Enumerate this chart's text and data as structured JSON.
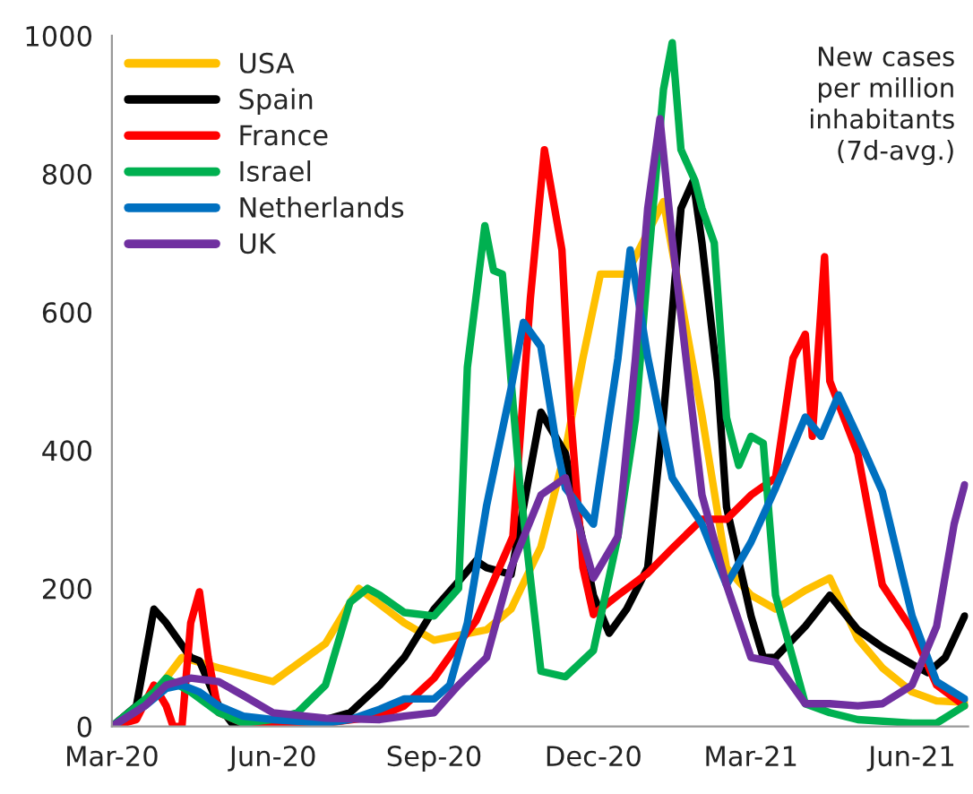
{
  "chart_data": {
    "type": "line",
    "annotations": [
      "New cases\nper million\ninhabitants\n(7d-avg.)"
    ],
    "xlim": [
      "2020-03-01",
      "2021-07-03"
    ],
    "xticks": [
      {
        "value": "2020-03-01",
        "label": "Mar-20"
      },
      {
        "value": "2020-06-01",
        "label": "Jun-20"
      },
      {
        "value": "2020-09-01",
        "label": "Sep-20"
      },
      {
        "value": "2020-12-01",
        "label": "Dec-20"
      },
      {
        "value": "2021-03-01",
        "label": "Mar-21"
      },
      {
        "value": "2021-06-01",
        "label": "Jun-21"
      }
    ],
    "ylim": [
      0,
      1000
    ],
    "yticks": [
      0,
      200,
      400,
      600,
      800,
      1000
    ],
    "grid": false,
    "legend": "top left",
    "series": [
      {
        "name": "USA",
        "color": "#ffc000",
        "x": [
          "2020-03-01",
          "2020-03-20",
          "2020-04-10",
          "2020-05-01",
          "2020-06-01",
          "2020-07-01",
          "2020-07-20",
          "2020-08-15",
          "2020-09-01",
          "2020-10-01",
          "2020-10-15",
          "2020-11-01",
          "2020-11-15",
          "2020-11-25",
          "2020-12-05",
          "2020-12-20",
          "2021-01-10",
          "2021-02-01",
          "2021-02-15",
          "2021-03-01",
          "2021-03-15",
          "2021-04-01",
          "2021-04-15",
          "2021-05-01",
          "2021-05-15",
          "2021-06-01",
          "2021-06-15",
          "2021-07-01"
        ],
        "values": [
          0,
          30,
          100,
          85,
          65,
          120,
          200,
          150,
          125,
          140,
          170,
          260,
          400,
          533,
          655,
          655,
          760,
          450,
          230,
          190,
          170,
          197,
          215,
          127,
          85,
          50,
          37,
          35
        ]
      },
      {
        "name": "Spain",
        "color": "#000000",
        "x": [
          "2020-03-01",
          "2020-03-15",
          "2020-03-25",
          "2020-04-01",
          "2020-04-15",
          "2020-04-20",
          "2020-05-01",
          "2020-05-10",
          "2020-06-01",
          "2020-07-01",
          "2020-07-15",
          "2020-08-01",
          "2020-08-15",
          "2020-09-01",
          "2020-09-15",
          "2020-09-25",
          "2020-10-01",
          "2020-10-15",
          "2020-11-01",
          "2020-11-15",
          "2020-12-01",
          "2020-12-10",
          "2020-12-20",
          "2021-01-01",
          "2021-01-10",
          "2021-01-20",
          "2021-01-27",
          "2021-02-01",
          "2021-02-10",
          "2021-02-15",
          "2021-03-01",
          "2021-03-08",
          "2021-03-15",
          "2021-04-01",
          "2021-04-15",
          "2021-05-01",
          "2021-05-15",
          "2021-06-01",
          "2021-06-10",
          "2021-06-20",
          "2021-07-01"
        ],
        "values": [
          0,
          30,
          170,
          150,
          100,
          95,
          30,
          0,
          10,
          10,
          20,
          60,
          100,
          170,
          210,
          240,
          230,
          220,
          455,
          395,
          190,
          135,
          170,
          230,
          450,
          750,
          790,
          700,
          500,
          318,
          160,
          100,
          100,
          145,
          190,
          140,
          115,
          90,
          78,
          100,
          160
        ]
      },
      {
        "name": "France",
        "color": "#ff0000",
        "x": [
          "2020-03-01",
          "2020-03-15",
          "2020-03-25",
          "2020-04-01",
          "2020-04-05",
          "2020-04-10",
          "2020-04-15",
          "2020-04-20",
          "2020-04-25",
          "2020-05-01",
          "2020-05-15",
          "2020-06-01",
          "2020-07-01",
          "2020-08-01",
          "2020-08-15",
          "2020-09-01",
          "2020-09-15",
          "2020-09-25",
          "2020-10-16",
          "2020-10-26",
          "2020-11-03",
          "2020-11-13",
          "2020-11-18",
          "2020-11-25",
          "2020-12-01",
          "2020-12-15",
          "2021-01-01",
          "2021-01-15",
          "2021-02-01",
          "2021-02-15",
          "2021-03-01",
          "2021-03-15",
          "2021-03-25",
          "2021-04-01",
          "2021-04-05",
          "2021-04-12",
          "2021-04-15",
          "2021-05-01",
          "2021-05-15",
          "2021-06-01",
          "2021-06-15",
          "2021-07-01"
        ],
        "values": [
          0,
          10,
          60,
          30,
          0,
          0,
          150,
          195,
          100,
          20,
          5,
          5,
          5,
          15,
          30,
          70,
          120,
          153,
          275,
          620,
          835,
          690,
          450,
          230,
          162,
          190,
          222,
          258,
          300,
          300,
          335,
          360,
          533,
          568,
          420,
          680,
          500,
          395,
          205,
          140,
          60,
          30
        ]
      },
      {
        "name": "Israel",
        "color": "#00b050",
        "x": [
          "2020-03-01",
          "2020-03-25",
          "2020-04-01",
          "2020-04-15",
          "2020-05-01",
          "2020-05-15",
          "2020-06-01",
          "2020-06-15",
          "2020-07-01",
          "2020-07-15",
          "2020-07-25",
          "2020-08-01",
          "2020-08-15",
          "2020-09-01",
          "2020-09-15",
          "2020-09-20",
          "2020-09-30",
          "2020-10-05",
          "2020-10-10",
          "2020-10-15",
          "2020-10-20",
          "2020-11-01",
          "2020-11-15",
          "2020-12-01",
          "2020-12-15",
          "2020-12-25",
          "2021-01-01",
          "2021-01-10",
          "2021-01-15",
          "2021-01-20",
          "2021-01-28",
          "2021-02-01",
          "2021-02-08",
          "2021-02-15",
          "2021-02-22",
          "2021-03-01",
          "2021-03-08",
          "2021-03-15",
          "2021-04-01",
          "2021-04-15",
          "2021-05-01",
          "2021-06-01",
          "2021-06-15",
          "2021-07-01"
        ],
        "values": [
          0,
          50,
          70,
          50,
          20,
          5,
          10,
          20,
          60,
          180,
          200,
          190,
          165,
          160,
          200,
          520,
          725,
          660,
          655,
          500,
          350,
          80,
          72,
          110,
          275,
          445,
          663,
          922,
          990,
          835,
          790,
          750,
          700,
          447,
          378,
          420,
          410,
          190,
          33,
          20,
          10,
          5,
          5,
          30
        ]
      },
      {
        "name": "Netherlands",
        "color": "#0070c0",
        "x": [
          "2020-03-01",
          "2020-03-20",
          "2020-04-01",
          "2020-04-10",
          "2020-04-20",
          "2020-05-01",
          "2020-05-15",
          "2020-06-01",
          "2020-07-01",
          "2020-07-15",
          "2020-08-01",
          "2020-08-15",
          "2020-09-01",
          "2020-09-10",
          "2020-09-20",
          "2020-10-01",
          "2020-10-15",
          "2020-10-22",
          "2020-11-01",
          "2020-11-10",
          "2020-11-15",
          "2020-12-01",
          "2020-12-15",
          "2020-12-22",
          "2021-01-01",
          "2021-01-15",
          "2021-02-01",
          "2021-02-15",
          "2021-03-01",
          "2021-03-15",
          "2021-04-01",
          "2021-04-10",
          "2021-04-20",
          "2021-05-01",
          "2021-05-15",
          "2021-06-01",
          "2021-06-15",
          "2021-07-01"
        ],
        "values": [
          0,
          30,
          55,
          60,
          50,
          30,
          15,
          10,
          5,
          10,
          25,
          40,
          40,
          60,
          150,
          320,
          490,
          585,
          550,
          405,
          345,
          293,
          533,
          690,
          535,
          360,
          293,
          205,
          267,
          345,
          448,
          420,
          480,
          420,
          340,
          160,
          65,
          40
        ]
      },
      {
        "name": "UK",
        "color": "#7030a0",
        "x": [
          "2020-03-01",
          "2020-03-20",
          "2020-04-01",
          "2020-04-15",
          "2020-05-01",
          "2020-05-15",
          "2020-06-01",
          "2020-07-01",
          "2020-08-01",
          "2020-08-15",
          "2020-09-01",
          "2020-09-15",
          "2020-10-01",
          "2020-10-15",
          "2020-11-01",
          "2020-11-15",
          "2020-12-01",
          "2020-12-15",
          "2020-12-25",
          "2021-01-01",
          "2021-01-08",
          "2021-01-15",
          "2021-02-01",
          "2021-02-15",
          "2021-03-01",
          "2021-03-15",
          "2021-04-01",
          "2021-04-15",
          "2021-05-01",
          "2021-05-15",
          "2021-06-01",
          "2021-06-15",
          "2021-06-25",
          "2021-07-01"
        ],
        "values": [
          0,
          30,
          60,
          70,
          65,
          45,
          20,
          12,
          10,
          15,
          20,
          60,
          100,
          230,
          335,
          360,
          215,
          275,
          533,
          750,
          880,
          705,
          335,
          205,
          100,
          93,
          33,
          33,
          30,
          33,
          60,
          145,
          293,
          350
        ]
      }
    ]
  }
}
